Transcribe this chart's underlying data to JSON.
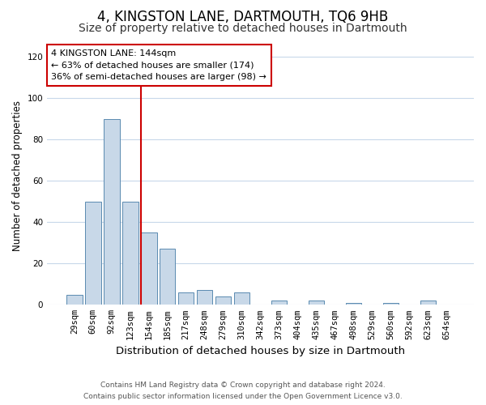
{
  "title": "4, KINGSTON LANE, DARTMOUTH, TQ6 9HB",
  "subtitle": "Size of property relative to detached houses in Dartmouth",
  "xlabel": "Distribution of detached houses by size in Dartmouth",
  "ylabel": "Number of detached properties",
  "bar_labels": [
    "29sqm",
    "60sqm",
    "92sqm",
    "123sqm",
    "154sqm",
    "185sqm",
    "217sqm",
    "248sqm",
    "279sqm",
    "310sqm",
    "342sqm",
    "373sqm",
    "404sqm",
    "435sqm",
    "467sqm",
    "498sqm",
    "529sqm",
    "560sqm",
    "592sqm",
    "623sqm",
    "654sqm"
  ],
  "bar_values": [
    5,
    50,
    90,
    50,
    35,
    27,
    6,
    7,
    4,
    6,
    0,
    2,
    0,
    2,
    0,
    1,
    0,
    1,
    0,
    2,
    0
  ],
  "bar_color": "#c8d8e8",
  "bar_edge_color": "#5a8ab0",
  "vline_color": "#cc0000",
  "annotation_text": "4 KINGSTON LANE: 144sqm\n← 63% of detached houses are smaller (174)\n36% of semi-detached houses are larger (98) →",
  "annotation_box_color": "#ffffff",
  "annotation_box_edge_color": "#cc0000",
  "ylim": [
    0,
    125
  ],
  "yticks": [
    0,
    20,
    40,
    60,
    80,
    100,
    120
  ],
  "footer_line1": "Contains HM Land Registry data © Crown copyright and database right 2024.",
  "footer_line2": "Contains public sector information licensed under the Open Government Licence v3.0.",
  "background_color": "#ffffff",
  "grid_color": "#c8d8ea",
  "title_fontsize": 12,
  "subtitle_fontsize": 10,
  "xlabel_fontsize": 9.5,
  "ylabel_fontsize": 8.5,
  "tick_fontsize": 7.5,
  "annotation_fontsize": 8,
  "footer_fontsize": 6.5
}
